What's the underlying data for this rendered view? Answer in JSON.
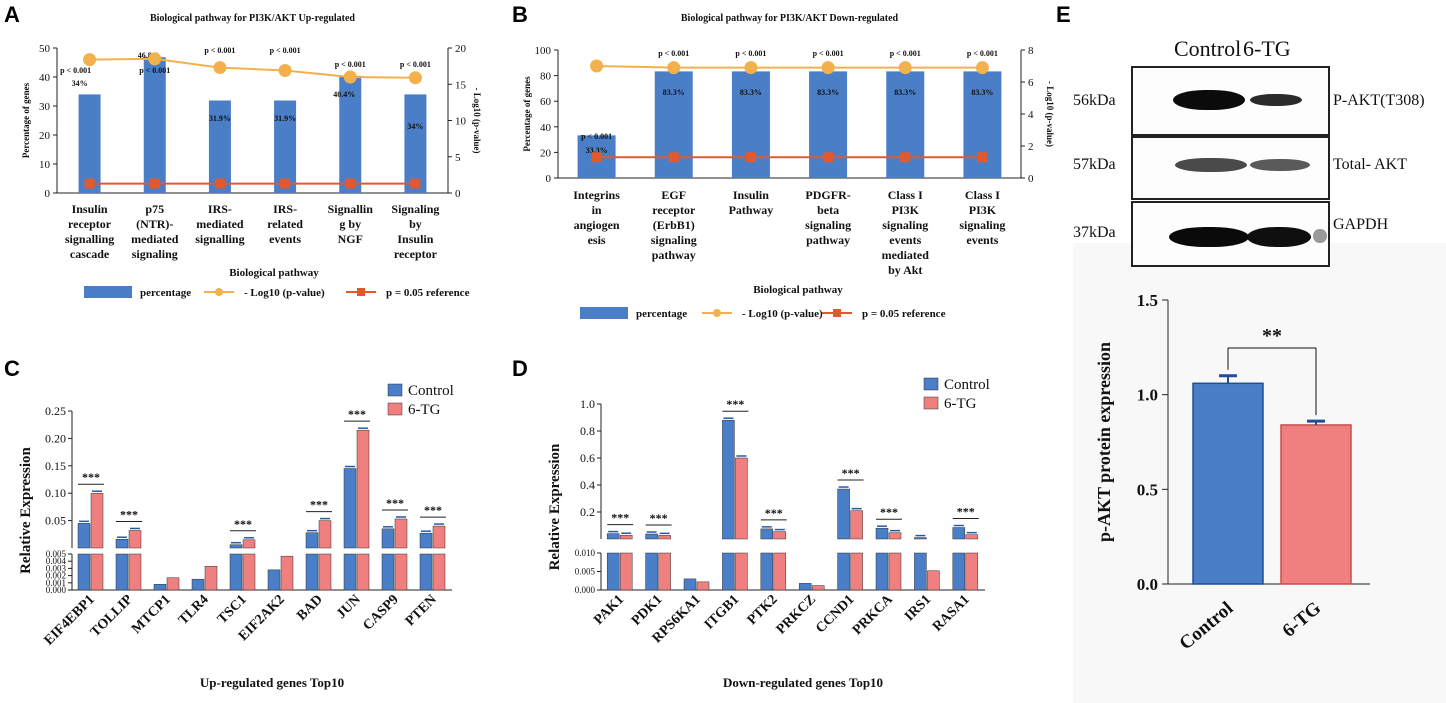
{
  "panels": {
    "a": "A",
    "b": "B",
    "c": "C",
    "d": "D",
    "e": "E"
  },
  "colors": {
    "blue": "#4a7ec6",
    "orange": "#f2b14c",
    "red": "#e15a2f",
    "pink": "#f07f7f",
    "line_blue": "#2a5aa6"
  },
  "chart_data": [
    {
      "id": "A",
      "type": "bar",
      "title": "Biological pathway for PI3K/AKT Up-regulated",
      "xlabel": "Biological pathway",
      "ylabel": "Percentage of genes",
      "y2label": "- Log10 (p-value)",
      "ylim": [
        0,
        50
      ],
      "y2lim": [
        0,
        20
      ],
      "yticks": [
        "0",
        "10",
        "20",
        "30",
        "40",
        "50"
      ],
      "y2ticks": [
        "0",
        "5",
        "10",
        "15",
        "20"
      ],
      "categories": [
        [
          "Insulin",
          "receptor",
          "signalling",
          "cascade"
        ],
        [
          "p75",
          "(NTR)-",
          "mediated",
          "signaling"
        ],
        [
          "IRS-",
          "mediated",
          "signalling"
        ],
        [
          "IRS-",
          "related",
          "events"
        ],
        [
          "Signallin",
          "g by",
          "NGF"
        ],
        [
          "Signaling",
          "by",
          "Insulin",
          "receptor"
        ]
      ],
      "percentage": [
        34,
        46.8,
        31.9,
        31.9,
        40.4,
        34
      ],
      "pct_labels": [
        "34%",
        "46.8%",
        "31.9%",
        "31.9%",
        "40.4%",
        "34%"
      ],
      "neglog10p": [
        18.4,
        18.5,
        17.3,
        16.9,
        16.0,
        15.9
      ],
      "p_labels": [
        "p < 0.001",
        "p < 0.001",
        "p < 0.001",
        "p < 0.001",
        "p < 0.001",
        "p < 0.001"
      ],
      "reference": 1.3,
      "legend": [
        "percentage",
        "- Log10 (p-value)",
        "p = 0.05 reference"
      ]
    },
    {
      "id": "B",
      "type": "bar",
      "title": "Biological pathway for PI3K/AKT Down-regulated",
      "xlabel": "Biological pathway",
      "ylabel": "Percentage of genes",
      "y2label": "- Log10 (p-value)",
      "ylim": [
        0,
        100
      ],
      "y2lim": [
        0,
        8
      ],
      "yticks": [
        "0",
        "20",
        "40",
        "60",
        "80",
        "100"
      ],
      "y2ticks": [
        "0",
        "2",
        "4",
        "6",
        "8"
      ],
      "categories": [
        [
          "Integrins",
          "in",
          "angiogen",
          "esis"
        ],
        [
          "EGF",
          "receptor",
          "(ErbB1)",
          "signaling",
          "pathway"
        ],
        [
          "Insulin",
          "Pathway"
        ],
        [
          "PDGFR-",
          "beta",
          "signaling",
          "pathway"
        ],
        [
          "Class I",
          "PI3K",
          "signaling",
          "events",
          "mediated",
          "by Akt"
        ],
        [
          "Class I",
          "PI3K",
          "signaling",
          "events"
        ]
      ],
      "percentage": [
        33.3,
        83.3,
        83.3,
        83.3,
        83.3,
        83.3
      ],
      "pct_labels": [
        "33.3%",
        "83.3%",
        "83.3%",
        "83.3%",
        "83.3%",
        "83.3%"
      ],
      "neglog10p": [
        7.0,
        6.9,
        6.9,
        6.9,
        6.9,
        6.9
      ],
      "p_labels": [
        "p < 0.001",
        "p < 0.001",
        "p < 0.001",
        "p < 0.001",
        "p < 0.001",
        "p < 0.001"
      ],
      "reference": 1.3,
      "legend": [
        "percentage",
        "- Log10 (p-value)",
        "p = 0.05 reference"
      ]
    },
    {
      "id": "C",
      "type": "bar",
      "xlabel": "Up-regulated genes Top10",
      "ylabel": "Relative Expression",
      "upper_ylim": [
        0.0,
        0.25
      ],
      "upper_ticks": [
        "0.05",
        "0.10",
        "0.15",
        "0.20",
        "0.25"
      ],
      "lower_ylim": [
        0,
        0.005
      ],
      "lower_ticks": [
        "0.000",
        "0.001",
        "0.002",
        "0.003",
        "0.004",
        "0.005"
      ],
      "categories": [
        "EIF4EBP1",
        "TOLLIP",
        "MTCP1",
        "TLR4",
        "TSC1",
        "EIF2AK2",
        "BAD",
        "JUN",
        "CASP9",
        "PTEN"
      ],
      "series": [
        {
          "name": "Control",
          "values": [
            0.045,
            0.016,
            0.0008,
            0.0015,
            0.006,
            0.0028,
            0.028,
            0.145,
            0.035,
            0.027
          ]
        },
        {
          "name": "6-TG",
          "values": [
            0.1,
            0.032,
            0.0017,
            0.0033,
            0.015,
            0.0047,
            0.05,
            0.215,
            0.053,
            0.04
          ]
        }
      ],
      "significance": [
        "***",
        "***",
        "",
        "",
        "***",
        "",
        "***",
        "***",
        "***",
        "***"
      ]
    },
    {
      "id": "D",
      "type": "bar",
      "xlabel": "Down-regulated genes Top10",
      "ylabel": "Relative Expression",
      "upper_ylim": [
        0.0,
        1.0
      ],
      "upper_ticks": [
        "0.2",
        "0.4",
        "0.6",
        "0.8",
        "1.0"
      ],
      "lower_ylim": [
        0,
        0.01
      ],
      "lower_ticks": [
        "0.000",
        "0.005",
        "0.010"
      ],
      "categories": [
        "PAK1",
        "PDK1",
        "RPS6KA1",
        "ITGB1",
        "PTK2",
        "PRKCZ",
        "CCND1",
        "PRKCA",
        "IRS1",
        "RASA1"
      ],
      "series": [
        {
          "name": "Control",
          "values": [
            0.04,
            0.037,
            0.003,
            0.88,
            0.075,
            0.0018,
            0.37,
            0.08,
            0.0105,
            0.085
          ]
        },
        {
          "name": "6-TG",
          "values": [
            0.028,
            0.027,
            0.0022,
            0.6,
            0.055,
            0.0012,
            0.21,
            0.047,
            0.0052,
            0.032
          ]
        }
      ],
      "significance": [
        "***",
        "***",
        "",
        "***",
        "***",
        "",
        "***",
        "***",
        "",
        "***"
      ]
    },
    {
      "id": "E-bar",
      "type": "bar",
      "ylabel": "p-AKT protein expression",
      "ylim": [
        0,
        1.5
      ],
      "yticks": [
        "0.0",
        "0.5",
        "1.0",
        "1.5"
      ],
      "categories": [
        "Control",
        "6-TG"
      ],
      "values": [
        1.06,
        0.84
      ],
      "errors": [
        0.04,
        0.02
      ],
      "significance": "**"
    }
  ],
  "blot": {
    "headers": [
      "Control",
      "6-TG"
    ],
    "rows": [
      {
        "kda": "56kDa",
        "protein": "P-AKT(T308)"
      },
      {
        "kda": "57kDa",
        "protein": "Total- AKT"
      },
      {
        "kda": "37kDa",
        "protein": "GAPDH"
      }
    ]
  }
}
